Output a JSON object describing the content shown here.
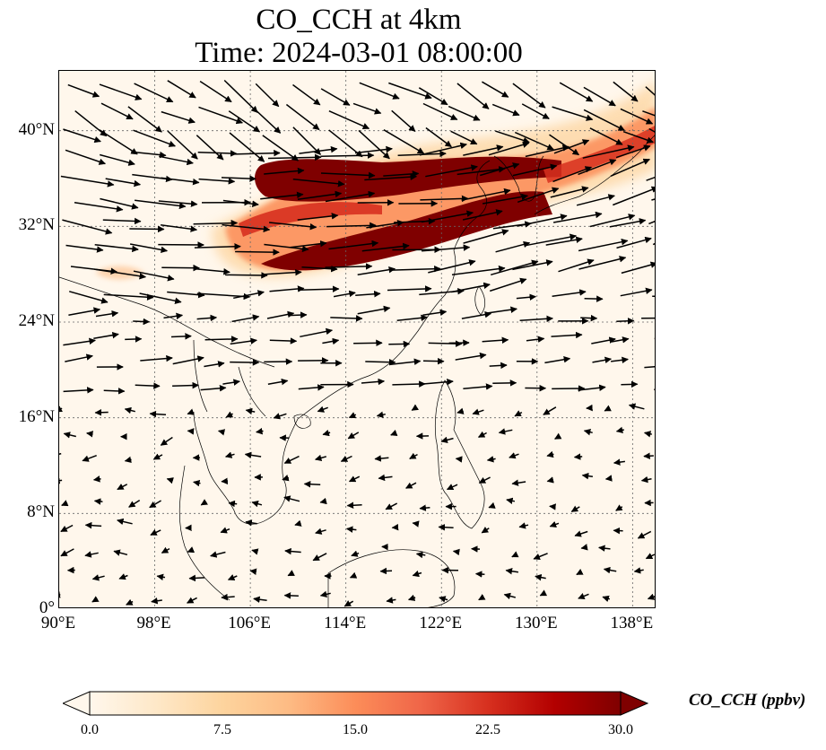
{
  "title_line1": "CO_CCH at 4km",
  "title_line2": "Time: 2024-03-01 08:00:00",
  "map": {
    "lon_range": [
      90,
      140
    ],
    "lat_range": [
      0,
      45
    ],
    "lat_ticks": [
      {
        "value": 0,
        "label": "0°"
      },
      {
        "value": 8,
        "label": "8°N"
      },
      {
        "value": 16,
        "label": "16°N"
      },
      {
        "value": 24,
        "label": "24°N"
      },
      {
        "value": 32,
        "label": "32°N"
      },
      {
        "value": 40,
        "label": "40°N"
      }
    ],
    "lon_ticks": [
      {
        "value": 90,
        "label": "90°E"
      },
      {
        "value": 98,
        "label": "98°E"
      },
      {
        "value": 106,
        "label": "106°E"
      },
      {
        "value": 114,
        "label": "114°E"
      },
      {
        "value": 122,
        "label": "122°E"
      },
      {
        "value": 130,
        "label": "130°E"
      },
      {
        "value": 138,
        "label": "138°E"
      }
    ],
    "gridlines": true,
    "background_color": "#fff7ec",
    "plume_colors": [
      "#fdd49e",
      "#fc8d59",
      "#d7301f",
      "#7f0000"
    ]
  },
  "colorbar": {
    "label": "CO_CCH (ppbv)",
    "ticks": [
      "0.0",
      "7.5",
      "15.0",
      "22.5",
      "30.0"
    ],
    "range": [
      0,
      30
    ],
    "colormap": [
      "#fff7ec",
      "#fee8c8",
      "#fdd49e",
      "#fdbb84",
      "#fc8d59",
      "#ef6548",
      "#d7301f",
      "#b30000",
      "#7f0000"
    ]
  }
}
